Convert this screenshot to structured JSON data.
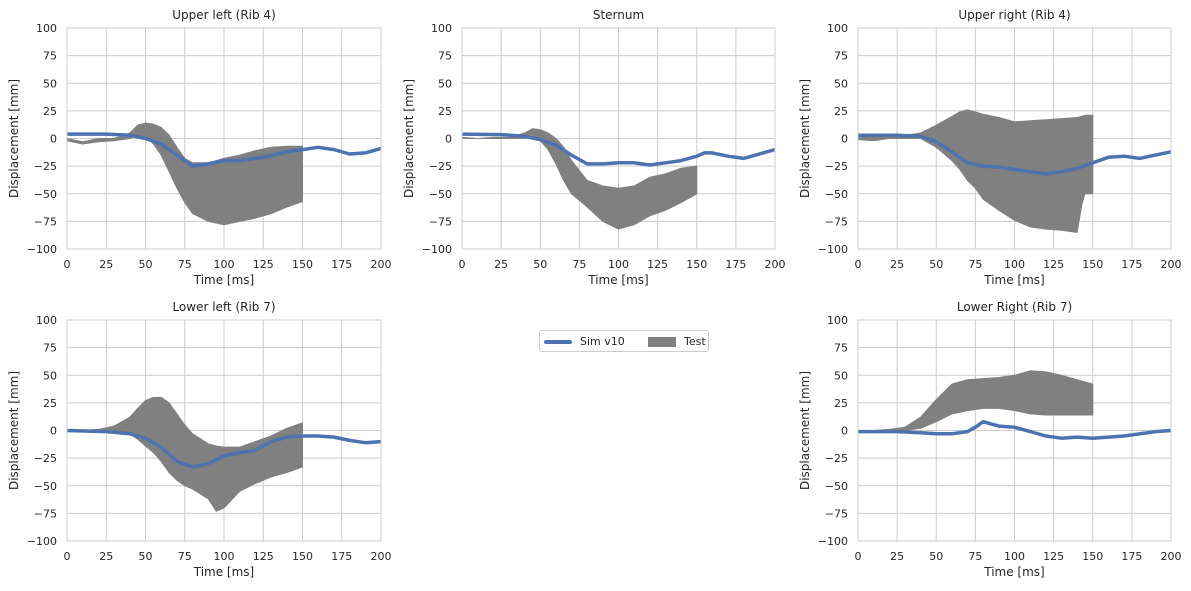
{
  "figure": {
    "legend": {
      "sim_label": "Sim v10",
      "test_label": "Test"
    }
  },
  "colors": {
    "sim": "#4c72b0",
    "test": "#808080",
    "grid": "#cccccc",
    "text": "#262626"
  },
  "chart_data": [
    {
      "type": "line",
      "title": "Upper left (Rib 4)",
      "xlabel": "Time [ms]",
      "ylabel": "Displacement [mm]",
      "xlim": [
        0,
        200
      ],
      "ylim": [
        -100,
        100
      ],
      "xticks": [
        0,
        25,
        50,
        75,
        100,
        125,
        150,
        175,
        200
      ],
      "yticks": [
        -100,
        -75,
        -50,
        -25,
        0,
        25,
        50,
        75,
        100
      ],
      "series": [
        {
          "name": "Sim v10",
          "style": "line",
          "x": [
            0,
            25,
            40,
            50,
            60,
            70,
            80,
            90,
            100,
            110,
            125,
            140,
            150,
            160,
            170,
            180,
            190,
            200
          ],
          "y": [
            4,
            4,
            3,
            0,
            -5,
            -15,
            -25,
            -23,
            -20,
            -20,
            -17,
            -12,
            -10,
            -8,
            -10,
            -14,
            -13,
            -9
          ]
        },
        {
          "name": "Test",
          "style": "band",
          "x": [
            0,
            10,
            20,
            30,
            40,
            45,
            50,
            55,
            60,
            65,
            70,
            75,
            80,
            90,
            100,
            110,
            120,
            130,
            140,
            150
          ],
          "y_upper": [
            0,
            -3,
            0,
            0,
            5,
            12,
            14,
            13,
            10,
            3,
            -8,
            -18,
            -22,
            -22,
            -18,
            -15,
            -11,
            -8,
            -7,
            -7
          ],
          "y_lower": [
            -2,
            -5,
            -3,
            -2,
            0,
            3,
            2,
            -5,
            -15,
            -30,
            -45,
            -58,
            -68,
            -75,
            -78,
            -75,
            -72,
            -68,
            -62,
            -57
          ]
        }
      ]
    },
    {
      "type": "line",
      "title": "Sternum",
      "xlabel": "Time [ms]",
      "ylabel": "Displacement [mm]",
      "xlim": [
        0,
        200
      ],
      "ylim": [
        -100,
        100
      ],
      "xticks": [
        0,
        25,
        50,
        75,
        100,
        125,
        150,
        175,
        200
      ],
      "yticks": [
        -100,
        -75,
        -50,
        -25,
        0,
        25,
        50,
        75,
        100
      ],
      "series": [
        {
          "name": "Sim v10",
          "style": "line",
          "x": [
            0,
            25,
            40,
            50,
            60,
            70,
            80,
            90,
            100,
            110,
            120,
            130,
            140,
            150,
            155,
            160,
            170,
            180,
            190,
            200
          ],
          "y": [
            4,
            3.5,
            2,
            -1,
            -6,
            -15,
            -23,
            -23,
            -22,
            -22,
            -24,
            -22,
            -20,
            -16,
            -13,
            -13,
            -16,
            -18,
            -14,
            -10
          ]
        },
        {
          "name": "Test",
          "style": "band",
          "x": [
            0,
            10,
            20,
            30,
            40,
            45,
            50,
            55,
            60,
            65,
            70,
            80,
            90,
            100,
            110,
            120,
            130,
            140,
            150
          ],
          "y_upper": [
            1,
            0,
            1,
            1,
            5,
            9,
            8,
            5,
            0,
            -8,
            -20,
            -38,
            -43,
            -45,
            -43,
            -35,
            -32,
            -27,
            -25
          ],
          "y_lower": [
            0,
            0,
            0,
            0,
            0,
            1,
            -2,
            -10,
            -23,
            -38,
            -50,
            -62,
            -75,
            -82,
            -78,
            -70,
            -65,
            -58,
            -50
          ]
        }
      ]
    },
    {
      "type": "line",
      "title": "Upper right (Rib 4)",
      "xlabel": "Time [ms]",
      "ylabel": "Displacement [mm]",
      "xlim": [
        0,
        200
      ],
      "ylim": [
        -100,
        100
      ],
      "xticks": [
        0,
        25,
        50,
        75,
        100,
        125,
        150,
        175,
        200
      ],
      "yticks": [
        -100,
        -75,
        -50,
        -25,
        0,
        25,
        50,
        75,
        100
      ],
      "series": [
        {
          "name": "Sim v10",
          "style": "line",
          "x": [
            0,
            25,
            40,
            50,
            60,
            70,
            80,
            90,
            100,
            110,
            120,
            130,
            140,
            150,
            160,
            170,
            180,
            190,
            200
          ],
          "y": [
            3,
            3,
            2,
            -3,
            -12,
            -22,
            -25,
            -26,
            -28,
            -30,
            -32,
            -30,
            -27,
            -22,
            -17,
            -16,
            -18,
            -15,
            -12
          ]
        },
        {
          "name": "Test",
          "style": "band",
          "x": [
            0,
            10,
            20,
            30,
            40,
            50,
            60,
            65,
            70,
            75,
            80,
            90,
            100,
            110,
            120,
            130,
            140,
            143,
            145,
            150
          ],
          "y_upper": [
            2,
            1,
            2,
            3,
            5,
            12,
            20,
            24,
            26,
            24,
            22,
            19,
            15,
            16,
            17,
            18,
            19,
            20,
            21,
            21
          ],
          "y_lower": [
            -1,
            -2,
            0,
            0,
            0,
            -8,
            -20,
            -28,
            -38,
            -45,
            -55,
            -65,
            -74,
            -80,
            -82,
            -83,
            -85,
            -60,
            -50,
            -50
          ]
        }
      ]
    },
    {
      "type": "line",
      "title": "Lower left (Rib 7)",
      "xlabel": "Time [ms]",
      "ylabel": "Displacement [mm]",
      "xlim": [
        0,
        200
      ],
      "ylim": [
        -100,
        100
      ],
      "xticks": [
        0,
        25,
        50,
        75,
        100,
        125,
        150,
        175,
        200
      ],
      "yticks": [
        -100,
        -75,
        -50,
        -25,
        0,
        25,
        50,
        75,
        100
      ],
      "series": [
        {
          "name": "Sim v10",
          "style": "line",
          "x": [
            0,
            25,
            40,
            50,
            60,
            70,
            80,
            90,
            100,
            110,
            120,
            130,
            140,
            150,
            160,
            170,
            180,
            190,
            200
          ],
          "y": [
            0,
            -1,
            -3,
            -7,
            -15,
            -28,
            -33,
            -30,
            -23,
            -20,
            -18,
            -10,
            -6,
            -5,
            -5,
            -6,
            -9,
            -11,
            -10
          ]
        },
        {
          "name": "Test",
          "style": "band",
          "x": [
            0,
            10,
            20,
            30,
            40,
            45,
            50,
            55,
            60,
            65,
            70,
            75,
            80,
            90,
            95,
            100,
            110,
            120,
            130,
            140,
            150
          ],
          "y_upper": [
            0,
            0,
            1,
            4,
            12,
            20,
            27,
            30,
            30,
            25,
            15,
            5,
            -3,
            -12,
            -14,
            -15,
            -15,
            -10,
            -5,
            2,
            7
          ],
          "y_lower": [
            -1,
            -1,
            -1,
            0,
            -3,
            -8,
            -14,
            -20,
            -28,
            -38,
            -45,
            -50,
            -53,
            -62,
            -73,
            -70,
            -55,
            -48,
            -42,
            -38,
            -33
          ]
        }
      ]
    },
    {
      "type": "line",
      "title": "Lower Right (Rib 7)",
      "xlabel": "Time [ms]",
      "ylabel": "Displacement [mm]",
      "xlim": [
        0,
        200
      ],
      "ylim": [
        -100,
        100
      ],
      "xticks": [
        0,
        25,
        50,
        75,
        100,
        125,
        150,
        175,
        200
      ],
      "yticks": [
        -100,
        -75,
        -50,
        -25,
        0,
        25,
        50,
        75,
        100
      ],
      "series": [
        {
          "name": "Sim v10",
          "style": "line",
          "x": [
            0,
            25,
            40,
            50,
            60,
            70,
            75,
            80,
            85,
            90,
            100,
            110,
            120,
            130,
            140,
            150,
            160,
            170,
            180,
            190,
            200
          ],
          "y": [
            -1,
            -1,
            -2,
            -3,
            -3,
            -1,
            3,
            8,
            6,
            4,
            3,
            -1,
            -5,
            -7,
            -6,
            -7,
            -6,
            -5,
            -3,
            -1,
            0
          ]
        },
        {
          "name": "Test",
          "style": "band",
          "x": [
            0,
            10,
            20,
            30,
            40,
            50,
            60,
            70,
            80,
            90,
            100,
            110,
            120,
            130,
            140,
            150
          ],
          "y_upper": [
            0,
            0,
            1,
            3,
            12,
            28,
            42,
            46,
            47,
            48,
            50,
            54,
            53,
            50,
            46,
            42
          ],
          "y_lower": [
            -1,
            -1,
            -1,
            0,
            2,
            8,
            15,
            18,
            20,
            20,
            18,
            15,
            14,
            14,
            14,
            14
          ]
        }
      ]
    }
  ]
}
